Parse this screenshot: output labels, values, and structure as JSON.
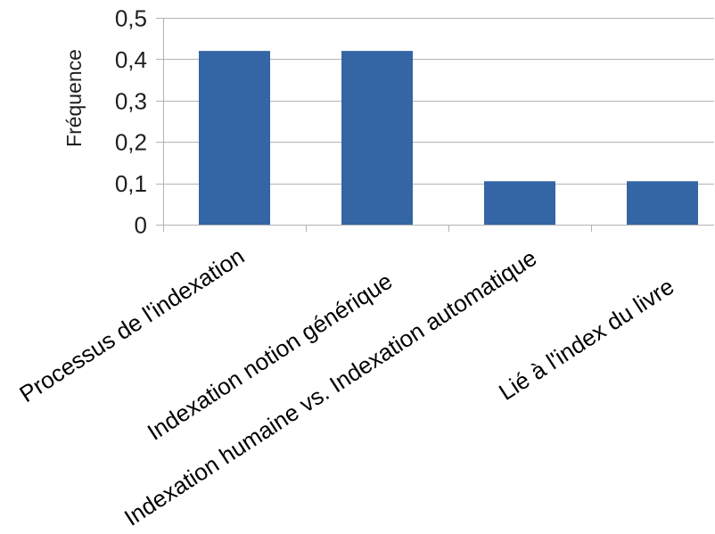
{
  "chart_data": {
    "type": "bar",
    "categories": [
      "Processus de l'indexation",
      "Indexation notion générique",
      "Indexation humaine vs. Indexation automatique",
      "Lié à l'index du livre"
    ],
    "values": [
      0.42,
      0.42,
      0.105,
      0.105
    ],
    "ylabel": "Fréquence",
    "ylim": [
      0,
      0.5
    ],
    "yticks": [
      0,
      0.1,
      0.2,
      0.3,
      0.4,
      0.5
    ],
    "ytick_labels": [
      "0",
      "0,1",
      "0,2",
      "0,3",
      "0,4",
      "0,5"
    ],
    "grid": true,
    "colors": {
      "bar": "#3465a4",
      "grid": "#b3b3b3",
      "axis": "#b3b3b3",
      "text": "#1f1f1f",
      "label": "#000000"
    }
  }
}
